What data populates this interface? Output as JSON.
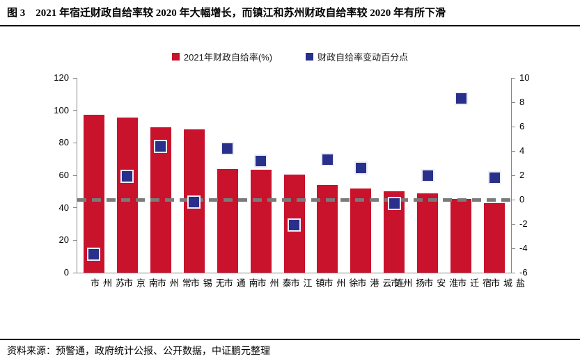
{
  "header": {
    "title": "图 3　2021 年宿迁财政自给率较 2020 年大幅增长，而镇江和苏州财政自给率较 2020 年有所下滑"
  },
  "footer": {
    "source": "资料来源：预警通，政府统计公报、公开数据，中证鹏元整理"
  },
  "colors": {
    "bar_red": "#c9122b",
    "marker_navy": "#28308c",
    "axis_gray": "#858585",
    "reference_gray": "#7a7a7a",
    "divider_black": "#000000"
  },
  "chart_data": {
    "type": "bar",
    "title": "",
    "xlabel": "",
    "ylabel": "",
    "grid": false,
    "legend_position": "top",
    "categories": [
      "苏州市",
      "南京市",
      "常州市",
      "无锡市",
      "南通市",
      "泰州市",
      "镇江市",
      "徐州市",
      "连云港市",
      "扬州市",
      "淮安市",
      "宿迁市",
      "盐城市"
    ],
    "series": [
      {
        "name": "2021年财政自给率(%)",
        "type": "bar",
        "axis": "left",
        "color": "#c9122b",
        "values": [
          97.3,
          95.5,
          89.5,
          88.4,
          63.8,
          63.4,
          60.6,
          53.9,
          51.9,
          50.3,
          49.0,
          45.3,
          43.0
        ]
      },
      {
        "name": "财政自给率变动百分点",
        "type": "scatter-square",
        "axis": "right",
        "color": "#28308c",
        "values": [
          -4.5,
          1.9,
          4.4,
          -0.2,
          4.2,
          3.2,
          -2.1,
          3.3,
          2.6,
          -0.3,
          2.0,
          8.3,
          1.8
        ]
      }
    ],
    "left_axis": {
      "min": 0,
      "max": 120,
      "step": 20,
      "ticks": [
        0,
        20,
        40,
        60,
        80,
        100,
        120
      ]
    },
    "right_axis": {
      "min": -6,
      "max": 10,
      "step": 2,
      "ticks": [
        -6,
        -4,
        -2,
        0,
        2,
        4,
        6,
        8,
        10
      ]
    },
    "reference_line": {
      "axis": "right",
      "value": 0,
      "style": "dashed",
      "color": "#7a7a7a"
    }
  }
}
